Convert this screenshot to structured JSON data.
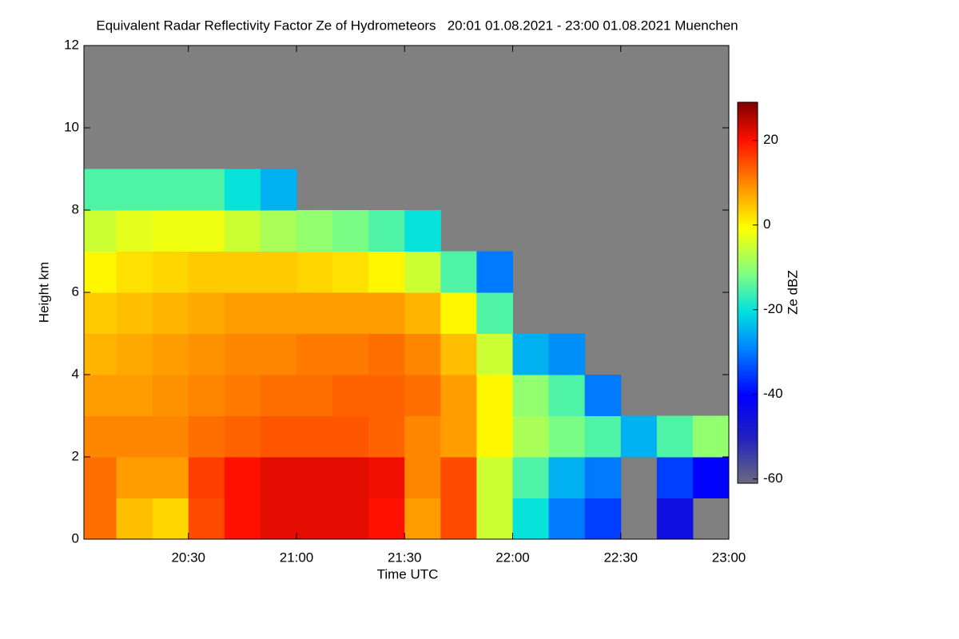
{
  "chart_data": {
    "type": "heatmap",
    "title": "Equivalent Radar Reflectivity Factor Ze of Hydrometeors   20:01 01.08.2021 - 23:00 01.08.2021 Muenchen",
    "x_label": "Time UTC",
    "y_label": "Height km",
    "colorbar_label": "Ze dBZ",
    "xlim": [
      1,
      180
    ],
    "xticks": [
      {
        "value": 30,
        "label": "20:30"
      },
      {
        "value": 60,
        "label": "21:00"
      },
      {
        "value": 90,
        "label": "21:30"
      },
      {
        "value": 120,
        "label": "22:00"
      },
      {
        "value": 150,
        "label": "22:30"
      },
      {
        "value": 180,
        "label": "23:00"
      }
    ],
    "ylim": [
      0,
      12
    ],
    "yticks": [
      0,
      2,
      4,
      6,
      8,
      10,
      12
    ],
    "x_bins": [
      1,
      10,
      20,
      30,
      40,
      50,
      60,
      70,
      80,
      90,
      100,
      110,
      120,
      130,
      140,
      150,
      160,
      170,
      180
    ],
    "y_bins": [
      0,
      1,
      2,
      3,
      4,
      5,
      6,
      7,
      8,
      9,
      10,
      11,
      12
    ],
    "colormap": "jet",
    "clim": [
      -61,
      29
    ],
    "cticks": [
      -60,
      -40,
      -20,
      0,
      20
    ],
    "background": "#808080",
    "z": [
      [
        12,
        5,
        3,
        15,
        20,
        22,
        22,
        22,
        20,
        8,
        15,
        -5,
        -20,
        -30,
        -35,
        null,
        -45,
        null
      ],
      [
        12,
        8,
        8,
        16,
        20,
        22,
        22,
        22,
        21,
        10,
        15,
        -5,
        -15,
        -25,
        -30,
        null,
        -35,
        -40
      ],
      [
        10,
        10,
        10,
        12,
        13,
        14,
        14,
        14,
        13,
        10,
        8,
        0,
        -8,
        -12,
        -15,
        -25,
        -15,
        -10
      ],
      [
        8,
        8,
        9,
        10,
        11,
        12,
        12,
        13,
        13,
        12,
        8,
        0,
        -10,
        -15,
        -30,
        null,
        null,
        null
      ],
      [
        6,
        7,
        8,
        9,
        10,
        10,
        11,
        11,
        12,
        10,
        5,
        -5,
        -25,
        -28,
        null,
        null,
        null,
        null
      ],
      [
        4,
        5,
        6,
        7,
        8,
        8,
        8,
        8,
        8,
        6,
        0,
        -15,
        null,
        null,
        null,
        null,
        null,
        null
      ],
      [
        0,
        2,
        3,
        4,
        4,
        4,
        3,
        2,
        0,
        -5,
        -15,
        -30,
        null,
        null,
        null,
        null,
        null,
        null
      ],
      [
        -5,
        -3,
        -2,
        -2,
        -5,
        -8,
        -10,
        -12,
        -15,
        -20,
        null,
        null,
        null,
        null,
        null,
        null,
        null,
        null
      ],
      [
        -15,
        -15,
        -15,
        -15,
        -20,
        -25,
        null,
        null,
        null,
        null,
        null,
        null,
        null,
        null,
        null,
        null,
        null,
        null
      ],
      [
        null,
        null,
        null,
        null,
        null,
        null,
        null,
        null,
        null,
        null,
        null,
        null,
        null,
        null,
        null,
        null,
        null,
        null
      ],
      [
        null,
        null,
        null,
        null,
        null,
        null,
        null,
        null,
        null,
        null,
        null,
        null,
        null,
        null,
        null,
        null,
        null,
        null
      ],
      [
        null,
        null,
        null,
        null,
        null,
        null,
        null,
        null,
        null,
        null,
        null,
        null,
        null,
        null,
        null,
        null,
        null,
        null
      ]
    ]
  }
}
